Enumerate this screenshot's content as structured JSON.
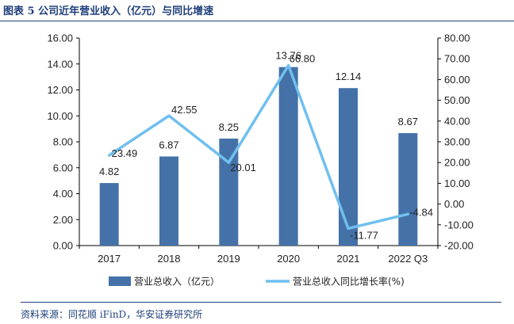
{
  "figure": {
    "title": "图表 5 公司近年营业收入（亿元）与同比增速",
    "source": "资料来源：同花顺 iFinD，华安证券研究所"
  },
  "colors": {
    "bar": "#4472a8",
    "line": "#70bfef",
    "rule": "#1f3f7a"
  },
  "chart_data": {
    "type": "bar",
    "categories": [
      "2017",
      "2018",
      "2019",
      "2020",
      "2021",
      "2022 Q3"
    ],
    "series": [
      {
        "name": "营业总收入（亿元）",
        "type": "bar",
        "axis": "left",
        "values": [
          4.82,
          6.87,
          8.25,
          13.76,
          12.14,
          8.67
        ],
        "labels": [
          "4.82",
          "6.87",
          "8.25",
          "13.76",
          "12.14",
          "8.67"
        ]
      },
      {
        "name": "营业总收入同比增长率(%)",
        "type": "line",
        "axis": "right",
        "values": [
          23.49,
          42.55,
          20.01,
          66.8,
          -11.77,
          -4.84
        ],
        "labels": [
          "23.49",
          "42.55",
          "20.01",
          "66.80",
          "-11.77",
          "-4.84"
        ]
      }
    ],
    "left_axis": {
      "range": [
        0,
        16
      ],
      "ticks": [
        "0.00",
        "2.00",
        "4.00",
        "6.00",
        "8.00",
        "10.00",
        "12.00",
        "14.00",
        "16.00"
      ]
    },
    "right_axis": {
      "range": [
        -20,
        80
      ],
      "ticks": [
        "-20.00",
        "-10.00",
        "0.00",
        "10.00",
        "20.00",
        "30.00",
        "40.00",
        "50.00",
        "60.00",
        "70.00",
        "80.00"
      ]
    },
    "legend": "bottom",
    "grid": false
  }
}
